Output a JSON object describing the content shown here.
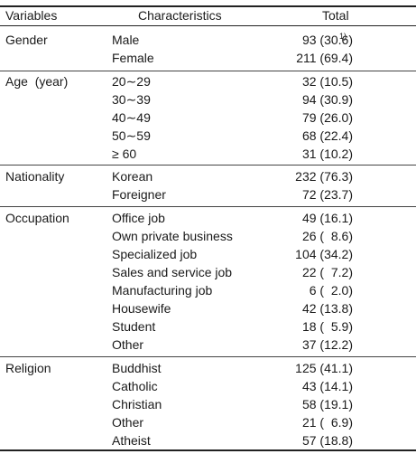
{
  "header": {
    "variables": "Variables",
    "characteristics": "Characteristics",
    "total": "Total"
  },
  "footnote_marker": "1)",
  "groups": [
    {
      "variable": "Gender",
      "rows": [
        {
          "characteristic": "Male",
          "total": "93 (30.6)"
        },
        {
          "characteristic": "Female",
          "total": "211 (69.4)"
        }
      ]
    },
    {
      "variable": "Age  (year)",
      "rows": [
        {
          "characteristic": "20∼29",
          "total": "32 (10.5)"
        },
        {
          "characteristic": "30∼39",
          "total": "94 (30.9)"
        },
        {
          "characteristic": "40∼49",
          "total": "79 (26.0)"
        },
        {
          "characteristic": "50∼59",
          "total": "68 (22.4)"
        },
        {
          "characteristic": "≥ 60",
          "total": "31 (10.2)"
        }
      ]
    },
    {
      "variable": "Nationality",
      "rows": [
        {
          "characteristic": "Korean",
          "total": "232 (76.3)"
        },
        {
          "characteristic": "Foreigner",
          "total": "72 (23.7)"
        }
      ]
    },
    {
      "variable": "Occupation",
      "rows": [
        {
          "characteristic": "Office job",
          "total": "49 (16.1)"
        },
        {
          "characteristic": "Own private business",
          "total": "26 (  8.6)"
        },
        {
          "characteristic": "Specialized job",
          "total": "104 (34.2)"
        },
        {
          "characteristic": "Sales and service job",
          "total": "22 (  7.2)"
        },
        {
          "characteristic": "Manufacturing job",
          "total": "6 (  2.0)"
        },
        {
          "characteristic": "Housewife",
          "total": "42 (13.8)"
        },
        {
          "characteristic": "Student",
          "total": "18 (  5.9)"
        },
        {
          "characteristic": "Other",
          "total": "37 (12.2)"
        }
      ]
    },
    {
      "variable": "Religion",
      "rows": [
        {
          "characteristic": "Buddhist",
          "total": "125 (41.1)"
        },
        {
          "characteristic": "Catholic",
          "total": "43 (14.1)"
        },
        {
          "characteristic": "Christian",
          "total": "58 (19.1)"
        },
        {
          "characteristic": "Other",
          "total": "21 (  6.9)"
        },
        {
          "characteristic": "Atheist",
          "total": "57 (18.8)"
        }
      ]
    }
  ]
}
